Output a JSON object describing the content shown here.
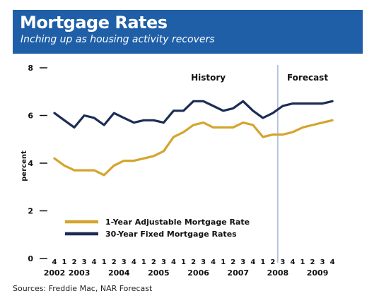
{
  "header": {
    "title": "Mortgage Rates",
    "subtitle": "Inching up as housing activity recovers",
    "background_color": "#1f5fa8"
  },
  "source": "Sources: Freddie Mac, NAR Forecast",
  "chart_data": {
    "type": "line",
    "ylabel": "percent",
    "ylim": [
      0,
      8
    ],
    "yticks": [
      0,
      2,
      4,
      6,
      8
    ],
    "grid": false,
    "legend_placement": "bottom-left",
    "categories": [
      "4",
      "1",
      "2",
      "3",
      "4",
      "1",
      "2",
      "3",
      "4",
      "1",
      "2",
      "3",
      "4",
      "1",
      "2",
      "3",
      "4",
      "1",
      "2",
      "3",
      "4",
      "1",
      "2",
      "3",
      "4",
      "1",
      "2",
      "3",
      "4"
    ],
    "years": [
      {
        "label": "2002",
        "index": 0
      },
      {
        "label": "2003",
        "index": 2.5
      },
      {
        "label": "2004",
        "index": 6.5
      },
      {
        "label": "2005",
        "index": 10.5
      },
      {
        "label": "2006",
        "index": 14.5
      },
      {
        "label": "2007",
        "index": 18.5
      },
      {
        "label": "2008",
        "index": 22.5
      },
      {
        "label": "2009",
        "index": 26.5
      }
    ],
    "annotations": [
      {
        "text": "History",
        "at_index": 15.5
      },
      {
        "text": "Forecast",
        "at_index": 25.5
      }
    ],
    "divider_after_index": 22.5,
    "series": [
      {
        "name": "1-Year Adjustable Mortgage Rate",
        "color": "#d4a52c",
        "values": [
          4.2,
          3.9,
          3.7,
          3.7,
          3.7,
          3.5,
          3.9,
          4.1,
          4.1,
          4.2,
          4.3,
          4.5,
          5.1,
          5.3,
          5.6,
          5.7,
          5.5,
          5.5,
          5.5,
          5.7,
          5.6,
          5.1,
          5.2,
          5.2,
          5.3,
          5.5,
          5.6,
          5.7,
          5.8
        ]
      },
      {
        "name": "30-Year Fixed Mortgage Rates",
        "color": "#1b2d55",
        "values": [
          6.1,
          5.8,
          5.5,
          6.0,
          5.9,
          5.6,
          6.1,
          5.9,
          5.7,
          5.8,
          5.8,
          5.7,
          6.2,
          6.2,
          6.6,
          6.6,
          6.4,
          6.2,
          6.3,
          6.6,
          6.2,
          5.9,
          6.1,
          6.4,
          6.5,
          6.5,
          6.5,
          6.5,
          6.6
        ]
      }
    ],
    "divider_color": "#8ea6c8"
  }
}
